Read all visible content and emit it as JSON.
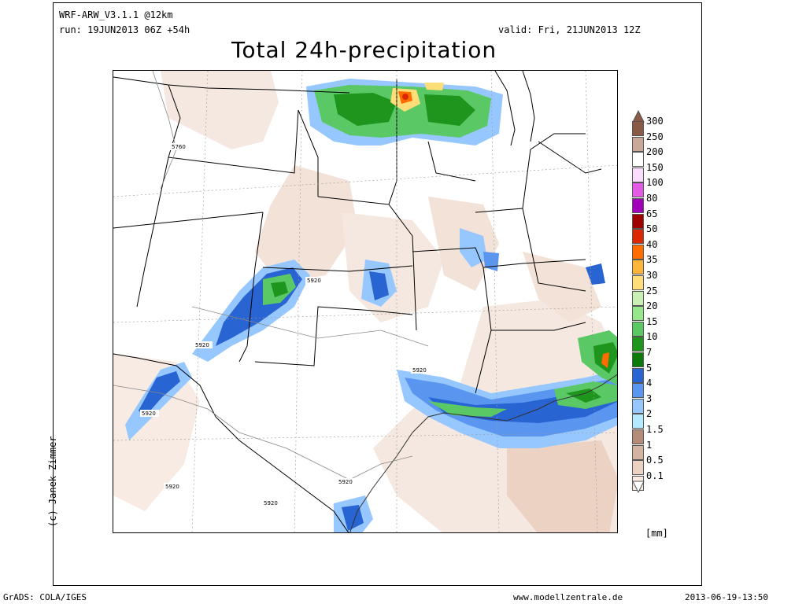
{
  "header": {
    "model": "WRF-ARW_V3.1.1 @12km",
    "run": "run: 19JUN2013 06Z +54h",
    "valid": "valid: Fri, 21JUN2013 12Z",
    "title": "Total 24h-precipitation"
  },
  "map": {
    "contour_labels": [
      "5760",
      "5920",
      "5920",
      "5920",
      "5920",
      "5920",
      "5920",
      "5920"
    ],
    "copyright": "(c) Janek Zimmer"
  },
  "legend": {
    "unit": "[mm]",
    "levels": [
      "300",
      "250",
      "200",
      "150",
      "100",
      "80",
      "65",
      "50",
      "40",
      "35",
      "30",
      "25",
      "20",
      "15",
      "10",
      "7",
      "5",
      "4",
      "3",
      "2",
      "1.5",
      "1",
      "0.5",
      "0.1"
    ],
    "colors": [
      "#8a5a46",
      "#c8a898",
      "#ffffff",
      "#fadcff",
      "#e25ae6",
      "#a000b8",
      "#9e0000",
      "#dc2800",
      "#ff6c00",
      "#ffb43c",
      "#ffdd78",
      "#c8f0b4",
      "#96e68c",
      "#5ac864",
      "#1e961e",
      "#0a7a0a",
      "#2864d2",
      "#5a96f0",
      "#96c8ff",
      "#b4eaff",
      "#b48c78",
      "#d2b4a0",
      "#ebd2c3",
      "#f7ebe3"
    ]
  },
  "footer": {
    "left": "GrADS: COLA/IGES",
    "center": "www.modellzentrale.de",
    "right": "2013-06-19-13:50"
  }
}
